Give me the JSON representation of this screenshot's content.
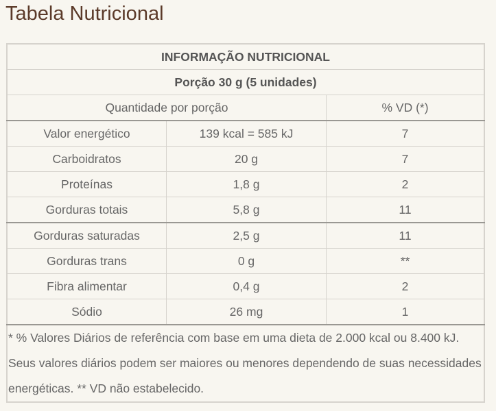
{
  "title": "Tabela Nutricional",
  "table": {
    "heading": "INFORMAÇÃO NUTRICIONAL",
    "portion": "Porção 30 g (5 unidades)",
    "col_quantity": "Quantidade por porção",
    "col_vd": "% VD (*)",
    "rows": [
      {
        "name": "Valor energético",
        "amount": "139 kcal = 585 kJ",
        "vd": "7"
      },
      {
        "name": "Carboidratos",
        "amount": "20 g",
        "vd": "7"
      },
      {
        "name": "Proteínas",
        "amount": "1,8 g",
        "vd": "2"
      },
      {
        "name": "Gorduras totais",
        "amount": "5,8 g",
        "vd": "11"
      },
      {
        "name": "Gorduras saturadas",
        "amount": "2,5 g",
        "vd": "11"
      },
      {
        "name": "Gorduras trans",
        "amount": "0 g",
        "vd": "**"
      },
      {
        "name": "Fibra alimentar",
        "amount": "0,4 g",
        "vd": "2"
      },
      {
        "name": "Sódio",
        "amount": "26 mg",
        "vd": "1"
      }
    ],
    "footnote": "* % Valores Diários de referência com base em uma dieta de 2.000 kcal ou 8.400 kJ. Seus valores diários podem ser maiores ou menores dependendo de suas necessidades energéticas. ** VD não estabelecido."
  }
}
